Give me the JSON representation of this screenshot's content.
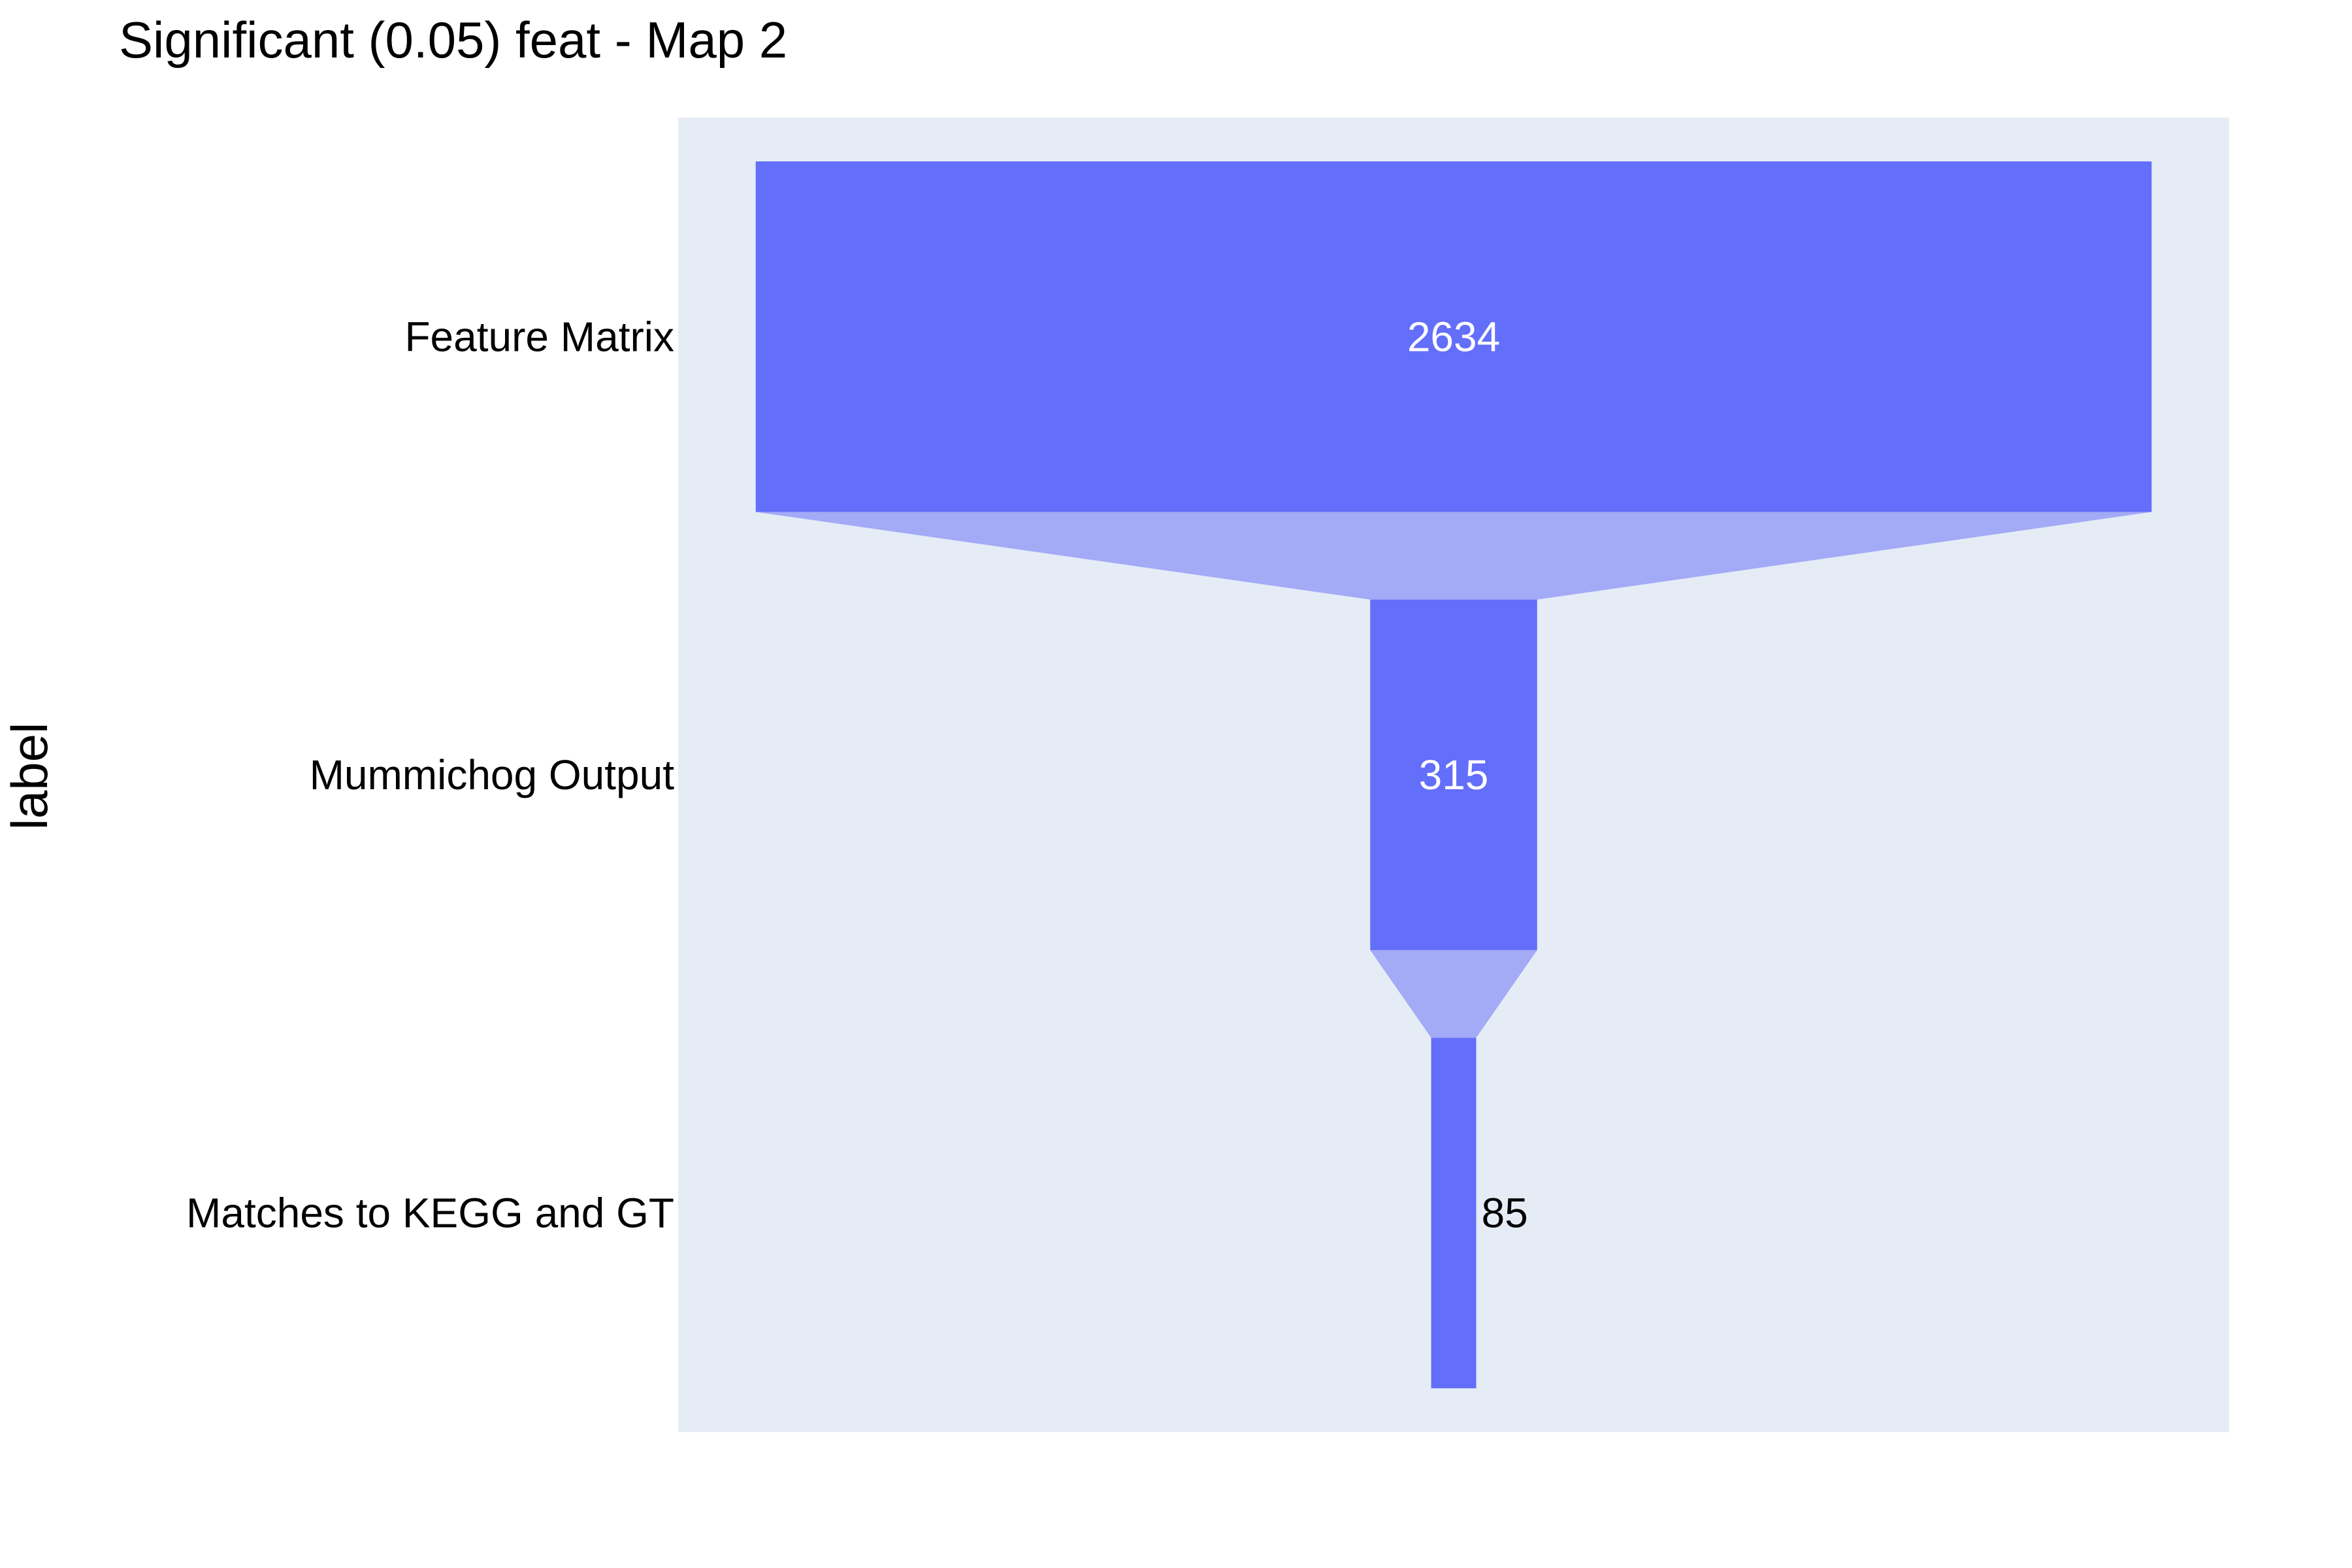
{
  "chart_data": {
    "type": "funnel",
    "title": "Significant (0.05) feat - Map 2",
    "ylabel": "label",
    "categories": [
      "Feature Matrix",
      "Mummichog Output",
      "Matches to KEGG and GT"
    ],
    "values": [
      2634,
      315,
      85
    ],
    "value_labels": [
      "2634",
      "315",
      "85"
    ],
    "colors": {
      "bar": "#636efa",
      "connector": "#a3aaf6",
      "plot_background": "#e5ecf6",
      "inside_text": "#ffffff",
      "outside_text": "#000000"
    }
  }
}
